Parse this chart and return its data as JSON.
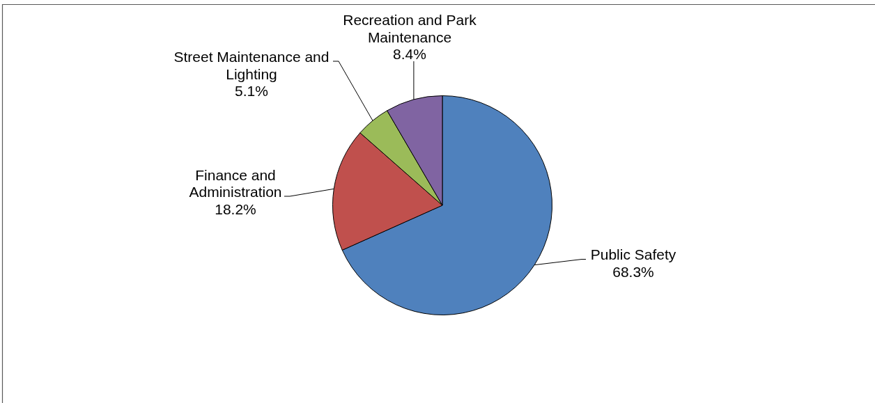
{
  "chart_data": {
    "type": "pie",
    "categories": [
      "Public Safety",
      "Finance and Administration",
      "Street Maintenance and Lighting",
      "Recreation and Park Maintenance"
    ],
    "values": [
      68.3,
      18.2,
      5.1,
      8.4
    ],
    "colors": [
      "#4f81bd",
      "#c0504d",
      "#9bbb59",
      "#8064a2"
    ],
    "value_labels": [
      "68.3%",
      "18.2%",
      "5.1%",
      "8.4%"
    ]
  }
}
